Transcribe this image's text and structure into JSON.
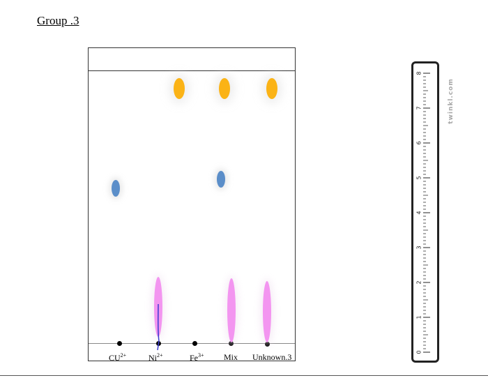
{
  "title": "Group .3",
  "lanes": [
    {
      "label": "CU",
      "charge": "2+"
    },
    {
      "label": "Ni",
      "charge": "2+"
    },
    {
      "label": "Fe",
      "charge": "3+"
    },
    {
      "label": "Mix",
      "charge": ""
    },
    {
      "label": "Unknown.3",
      "charge": ""
    }
  ],
  "spot_colors": {
    "yellow": "#fbb316",
    "blue": "#5b8ec9",
    "pink": "#f395f0"
  },
  "ruler": {
    "ticks": [
      "0",
      "1",
      "2",
      "3",
      "4",
      "5",
      "6",
      "7",
      "8"
    ]
  },
  "watermark": "twinkl.com"
}
